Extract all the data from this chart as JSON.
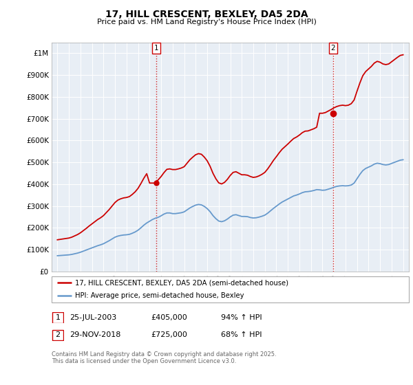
{
  "title": "17, HILL CRESCENT, BEXLEY, DA5 2DA",
  "subtitle": "Price paid vs. HM Land Registry's House Price Index (HPI)",
  "ylabel_ticks": [
    "£0",
    "£100K",
    "£200K",
    "£300K",
    "£400K",
    "£500K",
    "£600K",
    "£700K",
    "£800K",
    "£900K",
    "£1M"
  ],
  "ytick_values": [
    0,
    100000,
    200000,
    300000,
    400000,
    500000,
    600000,
    700000,
    800000,
    900000,
    1000000
  ],
  "ylim": [
    0,
    1050000
  ],
  "xlim_start": 1994.5,
  "xlim_end": 2025.5,
  "xtick_years": [
    1995,
    1996,
    1997,
    1998,
    1999,
    2000,
    2001,
    2002,
    2003,
    2004,
    2005,
    2006,
    2007,
    2008,
    2009,
    2010,
    2011,
    2012,
    2013,
    2014,
    2015,
    2016,
    2017,
    2018,
    2019,
    2020,
    2021,
    2022,
    2023,
    2024,
    2025
  ],
  "sale1_x": 2003.56,
  "sale1_y": 405000,
  "sale2_x": 2018.92,
  "sale2_y": 725000,
  "red_color": "#cc0000",
  "blue_color": "#6699cc",
  "chart_bg": "#e8eef5",
  "grid_color": "#ffffff",
  "legend_label_red": "17, HILL CRESCENT, BEXLEY, DA5 2DA (semi-detached house)",
  "legend_label_blue": "HPI: Average price, semi-detached house, Bexley",
  "table_row1": [
    "1",
    "25-JUL-2003",
    "£405,000",
    "94% ↑ HPI"
  ],
  "table_row2": [
    "2",
    "29-NOV-2018",
    "£725,000",
    "68% ↑ HPI"
  ],
  "footnote": "Contains HM Land Registry data © Crown copyright and database right 2025.\nThis data is licensed under the Open Government Licence v3.0.",
  "hpi_data_x": [
    1995.0,
    1995.25,
    1995.5,
    1995.75,
    1996.0,
    1996.25,
    1996.5,
    1996.75,
    1997.0,
    1997.25,
    1997.5,
    1997.75,
    1998.0,
    1998.25,
    1998.5,
    1998.75,
    1999.0,
    1999.25,
    1999.5,
    1999.75,
    2000.0,
    2000.25,
    2000.5,
    2000.75,
    2001.0,
    2001.25,
    2001.5,
    2001.75,
    2002.0,
    2002.25,
    2002.5,
    2002.75,
    2003.0,
    2003.25,
    2003.5,
    2003.75,
    2004.0,
    2004.25,
    2004.5,
    2004.75,
    2005.0,
    2005.25,
    2005.5,
    2005.75,
    2006.0,
    2006.25,
    2006.5,
    2006.75,
    2007.0,
    2007.25,
    2007.5,
    2007.75,
    2008.0,
    2008.25,
    2008.5,
    2008.75,
    2009.0,
    2009.25,
    2009.5,
    2009.75,
    2010.0,
    2010.25,
    2010.5,
    2010.75,
    2011.0,
    2011.25,
    2011.5,
    2011.75,
    2012.0,
    2012.25,
    2012.5,
    2012.75,
    2013.0,
    2013.25,
    2013.5,
    2013.75,
    2014.0,
    2014.25,
    2014.5,
    2014.75,
    2015.0,
    2015.25,
    2015.5,
    2015.75,
    2016.0,
    2016.25,
    2016.5,
    2016.75,
    2017.0,
    2017.25,
    2017.5,
    2017.75,
    2018.0,
    2018.25,
    2018.5,
    2018.75,
    2019.0,
    2019.25,
    2019.5,
    2019.75,
    2020.0,
    2020.25,
    2020.5,
    2020.75,
    2021.0,
    2021.25,
    2021.5,
    2021.75,
    2022.0,
    2022.25,
    2022.5,
    2022.75,
    2023.0,
    2023.25,
    2023.5,
    2023.75,
    2024.0,
    2024.25,
    2024.5,
    2024.75,
    2025.0
  ],
  "hpi_data_y": [
    72000,
    73000,
    74000,
    75000,
    76000,
    78000,
    81000,
    84000,
    88000,
    93000,
    98000,
    103000,
    108000,
    113000,
    118000,
    122000,
    127000,
    134000,
    141000,
    149000,
    157000,
    162000,
    165000,
    167000,
    168000,
    170000,
    175000,
    181000,
    189000,
    200000,
    212000,
    222000,
    230000,
    238000,
    244000,
    248000,
    255000,
    263000,
    268000,
    268000,
    265000,
    265000,
    267000,
    269000,
    273000,
    282000,
    291000,
    298000,
    304000,
    307000,
    305000,
    298000,
    288000,
    274000,
    256000,
    242000,
    231000,
    228000,
    232000,
    240000,
    250000,
    258000,
    260000,
    256000,
    252000,
    252000,
    251000,
    247000,
    245000,
    246000,
    249000,
    253000,
    258000,
    267000,
    278000,
    289000,
    299000,
    309000,
    318000,
    325000,
    332000,
    339000,
    346000,
    350000,
    355000,
    361000,
    365000,
    366000,
    368000,
    371000,
    375000,
    374000,
    372000,
    373000,
    377000,
    381000,
    386000,
    390000,
    392000,
    393000,
    392000,
    393000,
    396000,
    405000,
    425000,
    445000,
    462000,
    472000,
    478000,
    484000,
    492000,
    496000,
    494000,
    490000,
    488000,
    490000,
    495000,
    500000,
    505000,
    510000,
    512000
  ],
  "red_data_x": [
    1995.0,
    1995.25,
    1995.5,
    1995.75,
    1996.0,
    1996.25,
    1996.5,
    1996.75,
    1997.0,
    1997.25,
    1997.5,
    1997.75,
    1998.0,
    1998.25,
    1998.5,
    1998.75,
    1999.0,
    1999.25,
    1999.5,
    1999.75,
    2000.0,
    2000.25,
    2000.5,
    2000.75,
    2001.0,
    2001.25,
    2001.5,
    2001.75,
    2002.0,
    2002.25,
    2002.5,
    2002.75,
    2003.0,
    2003.25,
    2003.5,
    2003.75,
    2004.0,
    2004.25,
    2004.5,
    2004.75,
    2005.0,
    2005.25,
    2005.5,
    2005.75,
    2006.0,
    2006.25,
    2006.5,
    2006.75,
    2007.0,
    2007.25,
    2007.5,
    2007.75,
    2008.0,
    2008.25,
    2008.5,
    2008.75,
    2009.0,
    2009.25,
    2009.5,
    2009.75,
    2010.0,
    2010.25,
    2010.5,
    2010.75,
    2011.0,
    2011.25,
    2011.5,
    2011.75,
    2012.0,
    2012.25,
    2012.5,
    2012.75,
    2013.0,
    2013.25,
    2013.5,
    2013.75,
    2014.0,
    2014.25,
    2014.5,
    2014.75,
    2015.0,
    2015.25,
    2015.5,
    2015.75,
    2016.0,
    2016.25,
    2016.5,
    2016.75,
    2017.0,
    2017.25,
    2017.5,
    2017.75,
    2018.0,
    2018.25,
    2018.5,
    2018.75,
    2019.0,
    2019.25,
    2019.5,
    2019.75,
    2020.0,
    2020.25,
    2020.5,
    2020.75,
    2021.0,
    2021.25,
    2021.5,
    2021.75,
    2022.0,
    2022.25,
    2022.5,
    2022.75,
    2023.0,
    2023.25,
    2023.5,
    2023.75,
    2024.0,
    2024.25,
    2024.5,
    2024.75,
    2025.0
  ],
  "red_data_y": [
    145000,
    147000,
    149000,
    151000,
    153000,
    157000,
    163000,
    169000,
    177000,
    187000,
    197000,
    208000,
    218000,
    228000,
    238000,
    246000,
    256000,
    270000,
    284000,
    300000,
    316000,
    327000,
    333000,
    337000,
    339000,
    343000,
    353000,
    365000,
    381000,
    403000,
    427000,
    448000,
    405000,
    405000,
    405000,
    420000,
    435000,
    453000,
    468000,
    470000,
    467000,
    467000,
    470000,
    474000,
    480000,
    496000,
    512000,
    524000,
    535000,
    540000,
    537000,
    524000,
    507000,
    482000,
    450000,
    425000,
    406000,
    401000,
    408000,
    422000,
    440000,
    454000,
    457000,
    450000,
    443000,
    443000,
    441000,
    435000,
    431000,
    433000,
    438000,
    445000,
    454000,
    470000,
    489000,
    509000,
    526000,
    544000,
    560000,
    572000,
    584000,
    597000,
    609000,
    616000,
    625000,
    636000,
    643000,
    644000,
    649000,
    654000,
    661000,
    725000,
    725000,
    728000,
    735000,
    742000,
    750000,
    756000,
    760000,
    762000,
    760000,
    762000,
    769000,
    786000,
    826000,
    864000,
    897000,
    916000,
    928000,
    940000,
    955000,
    963000,
    959000,
    951000,
    948000,
    951000,
    961000,
    971000,
    981000,
    990000,
    993000
  ]
}
